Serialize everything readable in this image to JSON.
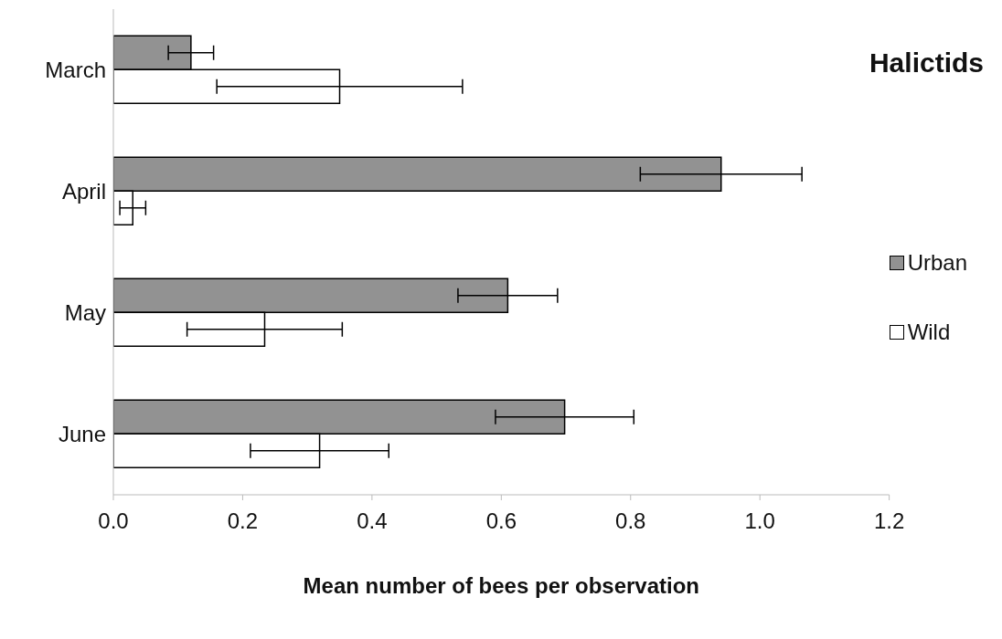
{
  "chart_data": {
    "type": "bar",
    "orientation": "horizontal",
    "title": "Halictids",
    "xlabel": "Mean number of bees per observation",
    "categories": [
      "March",
      "April",
      "May",
      "June"
    ],
    "series": [
      {
        "name": "Urban",
        "color": "#929292",
        "values": [
          0.12,
          0.94,
          0.61,
          0.698
        ],
        "errors": [
          0.035,
          0.125,
          0.077,
          0.107
        ]
      },
      {
        "name": "Wild",
        "color": "#ffffff",
        "values": [
          0.35,
          0.03,
          0.234,
          0.319
        ],
        "errors": [
          0.19,
          0.02,
          0.12,
          0.107
        ]
      }
    ],
    "xlim": [
      0,
      1.2
    ],
    "xticks": [
      {
        "value": 0,
        "label": "0.0"
      },
      {
        "value": 0.2,
        "label": "0.2"
      },
      {
        "value": 0.4,
        "label": "0.4"
      },
      {
        "value": 0.6,
        "label": "0.6"
      },
      {
        "value": 0.8,
        "label": "0.8"
      },
      {
        "value": 1,
        "label": "1.0"
      },
      {
        "value": 1.2,
        "label": "1.2"
      }
    ],
    "grid": false,
    "legend": "right"
  }
}
